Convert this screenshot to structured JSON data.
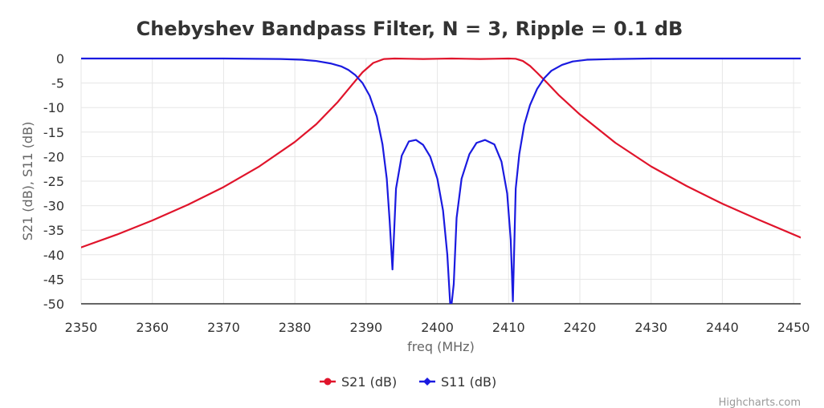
{
  "chart_data": {
    "type": "line",
    "title": "Chebyshev Bandpass Filter, N = 3, Ripple = 0.1 dB",
    "xlabel": "freq (MHz)",
    "ylabel": "S21 (dB), S11 (dB)",
    "xlim": [
      2350,
      2451
    ],
    "ylim": [
      -50,
      0
    ],
    "xticks": [
      2350,
      2360,
      2370,
      2380,
      2390,
      2400,
      2410,
      2420,
      2430,
      2440,
      2450
    ],
    "yticks": [
      0,
      -5,
      -10,
      -15,
      -20,
      -25,
      -30,
      -35,
      -40,
      -45,
      -50
    ],
    "grid": true,
    "legend_position": "bottom-center",
    "credits": "Highcharts.com",
    "series": [
      {
        "name": "S21 (dB)",
        "color": "#e0142b",
        "marker": "circle",
        "x": [
          2350,
          2355,
          2360,
          2365,
          2370,
          2375,
          2380,
          2383,
          2386,
          2388,
          2389.5,
          2391,
          2392.5,
          2394,
          2396,
          2398,
          2400,
          2402,
          2404,
          2406,
          2408,
          2410,
          2411,
          2412,
          2413,
          2414,
          2415.5,
          2417,
          2420,
          2425,
          2430,
          2435,
          2440,
          2445,
          2451
        ],
        "values": [
          -38.5,
          -35.9,
          -33.0,
          -29.8,
          -26.2,
          -22.0,
          -17.0,
          -13.4,
          -8.9,
          -5.4,
          -2.8,
          -0.9,
          -0.1,
          0,
          -0.05,
          -0.1,
          -0.05,
          0,
          -0.05,
          -0.1,
          -0.05,
          0,
          -0.05,
          -0.5,
          -1.5,
          -2.9,
          -5.1,
          -7.4,
          -11.4,
          -17.2,
          -22.0,
          -26.0,
          -29.6,
          -32.8,
          -36.5
        ]
      },
      {
        "name": "S11 (dB)",
        "color": "#1a1ae0",
        "marker": "diamond",
        "x": [
          2350,
          2370,
          2378,
          2381,
          2383,
          2385,
          2386.5,
          2387.5,
          2388.5,
          2389.5,
          2390.5,
          2391.5,
          2392.3,
          2392.9,
          2393.3,
          2393.7,
          2394.2,
          2395,
          2396,
          2397,
          2398,
          2399,
          2400,
          2400.8,
          2401.4,
          2401.8,
          2402.0,
          2402.3,
          2402.7,
          2403.4,
          2404.5,
          2405.5,
          2406.7,
          2408,
          2409,
          2409.8,
          2410.3,
          2410.6,
          2411.0,
          2411.5,
          2412.2,
          2413,
          2414,
          2415,
          2416,
          2417.5,
          2419,
          2421,
          2425,
          2430,
          2451
        ],
        "values": [
          0,
          0,
          -0.1,
          -0.25,
          -0.5,
          -1.0,
          -1.6,
          -2.3,
          -3.4,
          -5.0,
          -7.6,
          -11.8,
          -17.5,
          -24.5,
          -33.0,
          -43.0,
          -26.5,
          -19.8,
          -16.9,
          -16.6,
          -17.6,
          -20.0,
          -24.5,
          -31.0,
          -40.0,
          -50.0,
          -50.0,
          -46.0,
          -32.5,
          -24.5,
          -19.5,
          -17.2,
          -16.6,
          -17.5,
          -21.0,
          -27.5,
          -37.0,
          -49.5,
          -26.5,
          -19.5,
          -13.5,
          -9.5,
          -6.2,
          -4.0,
          -2.5,
          -1.3,
          -0.6,
          -0.25,
          -0.1,
          0,
          0
        ]
      }
    ]
  }
}
